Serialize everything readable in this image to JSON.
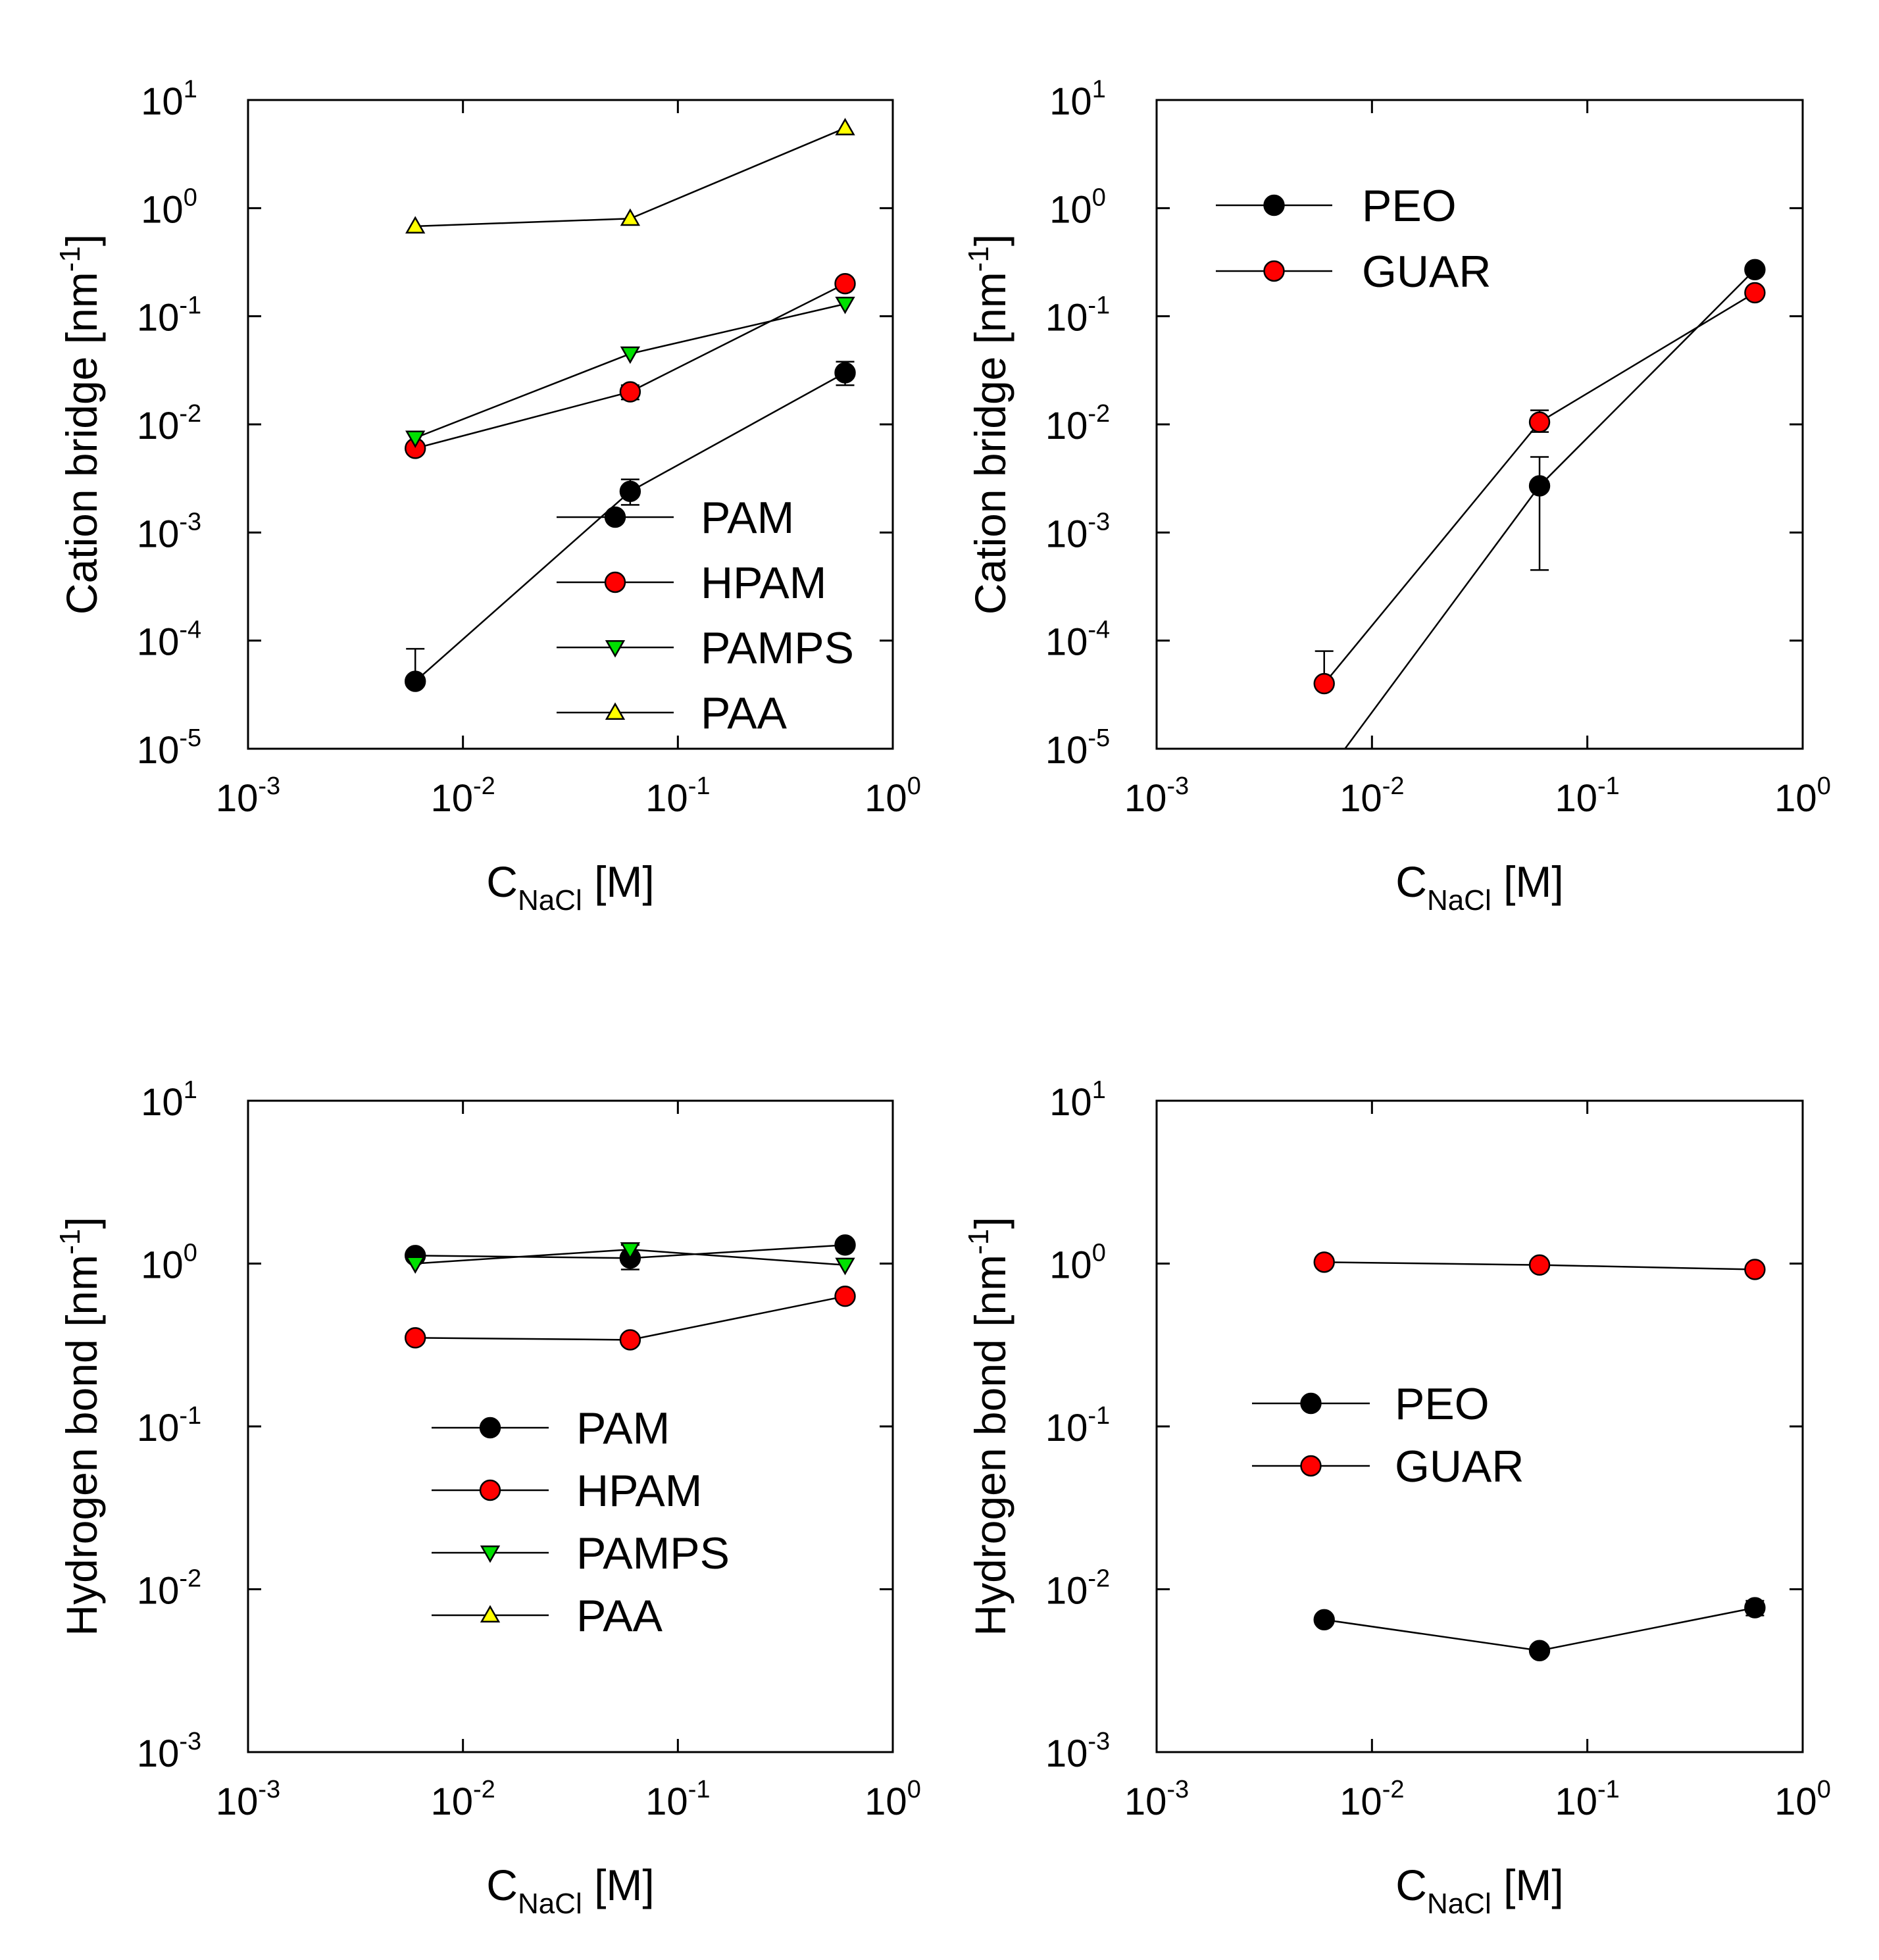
{
  "legend_symbol_color": "#000000",
  "chart_data": [
    {
      "type": "scatter",
      "ylabel": {
        "main": "Cation bridge [nm",
        "sup": "-1",
        "end": "]"
      },
      "xlabel": {
        "main": "C",
        "sub": "NaCl",
        "end": " [M]"
      },
      "xscale": "log",
      "yscale": "log",
      "xlim_exp": [
        -3,
        0
      ],
      "ylim_exp": [
        -5,
        1
      ],
      "x_ticks": [
        "-3",
        "-2",
        "-1",
        "0"
      ],
      "y_ticks": [
        "-5",
        "-4",
        "-3",
        "-2",
        "-1",
        "0",
        "1"
      ],
      "legend_placement": "lower-right",
      "series": [
        {
          "name": "PAM",
          "marker": "circle",
          "color": "#000000",
          "x": [
            0.006,
            0.06,
            0.6
          ],
          "y": [
            4.2e-05,
            0.0024,
            0.03
          ],
          "err_up": [
            8.4e-05,
            0.0031,
            0.038
          ],
          "err_down": [
            4.2e-05,
            0.0018,
            0.023
          ]
        },
        {
          "name": "HPAM",
          "marker": "circle",
          "color": "#ff0000",
          "x": [
            0.006,
            0.06,
            0.6
          ],
          "y": [
            0.006,
            0.02,
            0.2
          ],
          "err_up": [
            0.0066,
            0.023,
            0.21
          ],
          "err_down": [
            0.0055,
            0.017,
            0.19
          ]
        },
        {
          "name": "PAMPS",
          "marker": "triangle-down",
          "color": "#00e000",
          "x": [
            0.006,
            0.06,
            0.6
          ],
          "y": [
            0.0075,
            0.045,
            0.13
          ]
        },
        {
          "name": "PAA",
          "marker": "triangle-up",
          "color": "#ffff00",
          "x": [
            0.006,
            0.06,
            0.6
          ],
          "y": [
            0.68,
            0.8,
            5.5
          ]
        }
      ]
    },
    {
      "type": "scatter",
      "ylabel": {
        "main": "Cation bridge [nm",
        "sup": "-1",
        "end": "]"
      },
      "xlabel": {
        "main": "C",
        "sub": "NaCl",
        "end": " [M]"
      },
      "xscale": "log",
      "yscale": "log",
      "xlim_exp": [
        -3,
        0
      ],
      "ylim_exp": [
        -5,
        1
      ],
      "x_ticks": [
        "-3",
        "-2",
        "-1",
        "0"
      ],
      "y_ticks": [
        "-5",
        "-4",
        "-3",
        "-2",
        "-1",
        "0",
        "1"
      ],
      "legend_placement": "top-left",
      "series": [
        {
          "name": "PEO",
          "marker": "circle",
          "color": "#000000",
          "x": [
            0.006,
            0.06,
            0.6
          ],
          "y": [
            5.5e-06,
            0.0027,
            0.27
          ],
          "err_up": [
            5.5e-06,
            0.005,
            0.28
          ],
          "err_down": [
            5.5e-06,
            0.00045,
            0.26
          ]
        },
        {
          "name": "GUAR",
          "marker": "circle",
          "color": "#ff0000",
          "x": [
            0.006,
            0.06,
            0.6
          ],
          "y": [
            4e-05,
            0.0105,
            0.165
          ],
          "err_up": [
            8e-05,
            0.0135,
            0.17
          ],
          "err_down": [
            4e-05,
            0.0085,
            0.16
          ]
        }
      ]
    },
    {
      "type": "scatter",
      "ylabel": {
        "main": "Hydrogen bond [nm",
        "sup": "-1",
        "end": "]"
      },
      "xlabel": {
        "main": "C",
        "sub": "NaCl",
        "end": " [M]"
      },
      "xscale": "log",
      "yscale": "log",
      "xlim_exp": [
        -3,
        0
      ],
      "ylim_exp": [
        -3,
        1
      ],
      "x_ticks": [
        "-3",
        "-2",
        "-1",
        "0"
      ],
      "y_ticks": [
        "-3",
        "-2",
        "-1",
        "0",
        "1"
      ],
      "legend_placement": "center",
      "series": [
        {
          "name": "PAM",
          "marker": "circle",
          "color": "#000000",
          "x": [
            0.006,
            0.06,
            0.6
          ],
          "y": [
            1.12,
            1.08,
            1.3
          ],
          "err_up": [
            1.18,
            1.3,
            1.36
          ],
          "err_down": [
            1.06,
            0.92,
            1.24
          ]
        },
        {
          "name": "HPAM",
          "marker": "circle",
          "color": "#ff0000",
          "x": [
            0.006,
            0.06,
            0.6
          ],
          "y": [
            0.35,
            0.34,
            0.63
          ],
          "err_up": [
            0.36,
            0.35,
            0.67
          ],
          "err_down": [
            0.34,
            0.33,
            0.59
          ]
        },
        {
          "name": "PAMPS",
          "marker": "triangle-down",
          "color": "#00e000",
          "x": [
            0.006,
            0.06,
            0.6
          ],
          "y": [
            1.0,
            1.22,
            0.98
          ]
        },
        {
          "name": "PAA",
          "marker": "triangle-up",
          "color": "#ffff00",
          "x": [],
          "y": []
        }
      ]
    },
    {
      "type": "scatter",
      "ylabel": {
        "main": "Hydrogen bond [nm",
        "sup": "-1",
        "end": "]"
      },
      "xlabel": {
        "main": "C",
        "sub": "NaCl",
        "end": " [M]"
      },
      "xscale": "log",
      "yscale": "log",
      "xlim_exp": [
        -3,
        0
      ],
      "ylim_exp": [
        -3,
        1
      ],
      "x_ticks": [
        "-3",
        "-2",
        "-1",
        "0"
      ],
      "y_ticks": [
        "-3",
        "-2",
        "-1",
        "0",
        "1"
      ],
      "legend_placement": "center-left",
      "series": [
        {
          "name": "PEO",
          "marker": "circle",
          "color": "#000000",
          "x": [
            0.006,
            0.06,
            0.6
          ],
          "y": [
            0.0065,
            0.0042,
            0.0077
          ],
          "err_up": [
            0.0069,
            0.0044,
            0.0085
          ],
          "err_down": [
            0.0061,
            0.004,
            0.0069
          ]
        },
        {
          "name": "GUAR",
          "marker": "circle",
          "color": "#ff0000",
          "x": [
            0.006,
            0.06,
            0.6
          ],
          "y": [
            1.02,
            0.98,
            0.92
          ],
          "err_up": [
            1.04,
            1.0,
            0.94
          ],
          "err_down": [
            1.0,
            0.96,
            0.9
          ]
        }
      ]
    }
  ]
}
